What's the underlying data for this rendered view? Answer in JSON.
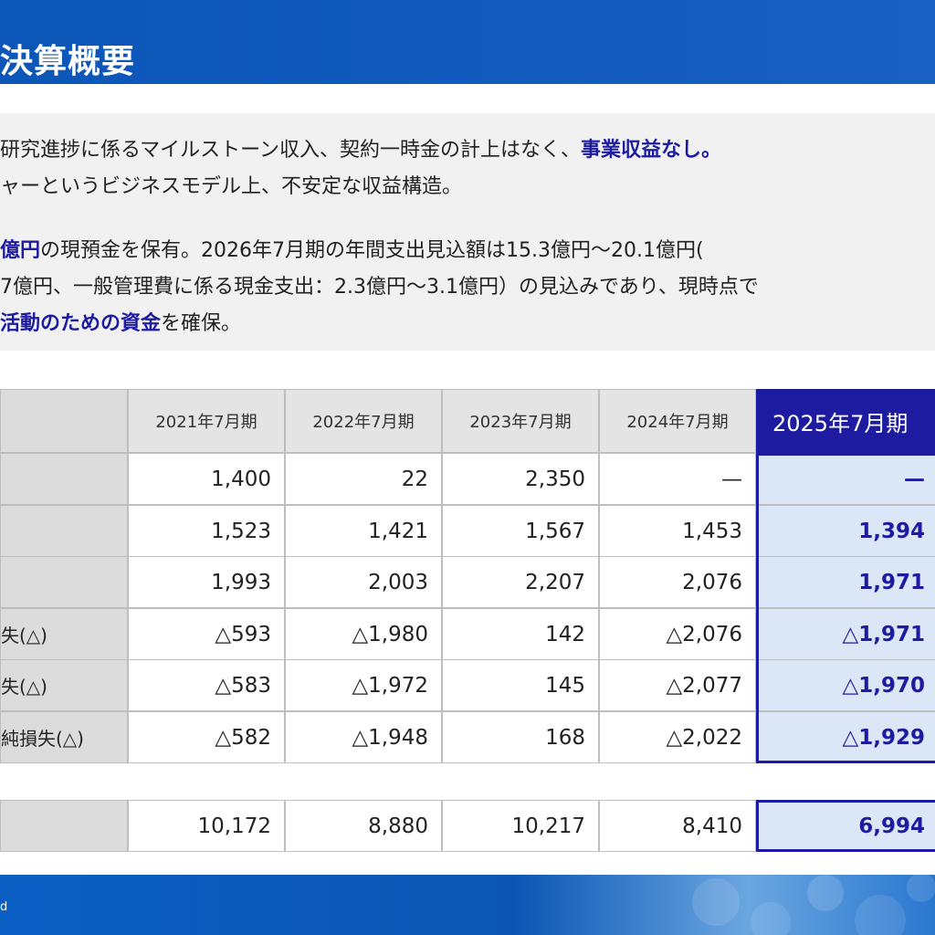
{
  "header": {
    "title": "決算概要"
  },
  "summary": {
    "line1_prefix": "研究進捗に係るマイルストーン収入、契約一時金の計上はなく、",
    "line1_highlight": "事業収益なし。",
    "line2": "ャーというビジネスモデル上、不安定な収益構造。",
    "line3_highlight": "億円",
    "line3_rest": "の現預金を保有。2026年7月期の年間支出見込額は15.3億円～20.1億円(",
    "line4": "7億円、一般管理費に係る現金支出：2.3億円～3.1億円）の見込みであり、現時点で",
    "line5_highlight": "活動のための資金",
    "line5_rest": "を確保。"
  },
  "table": {
    "columns": [
      "2021年7月期",
      "2022年7月期",
      "2023年7月期",
      "2024年7月期",
      "2025年7月期"
    ],
    "rows": [
      {
        "label": "",
        "values": [
          "1,400",
          "22",
          "2,350",
          "—",
          "—"
        ]
      },
      {
        "label": "",
        "values": [
          "1,523",
          "1,421",
          "1,567",
          "1,453",
          "1,394"
        ]
      },
      {
        "label": "",
        "values": [
          "1,993",
          "2,003",
          "2,207",
          "2,076",
          "1,971"
        ]
      },
      {
        "label": "失(△)",
        "values": [
          "△593",
          "△1,980",
          "142",
          "△2,076",
          "△1,971"
        ]
      },
      {
        "label": "失(△)",
        "values": [
          "△583",
          "△1,972",
          "145",
          "△2,077",
          "△1,970"
        ]
      },
      {
        "label": "純損失(△)",
        "values": [
          "△582",
          "△1,948",
          "168",
          "△2,022",
          "△1,929"
        ]
      }
    ],
    "bottom_row": {
      "label": "",
      "values": [
        "10,172",
        "8,880",
        "10,217",
        "8,410",
        "6,994"
      ]
    }
  },
  "footer": {
    "copyright": "d"
  },
  "colors": {
    "accent": "#1d1ba0",
    "header_blue": "#0b56b8",
    "highlight_fill": "#dbe7f6"
  }
}
